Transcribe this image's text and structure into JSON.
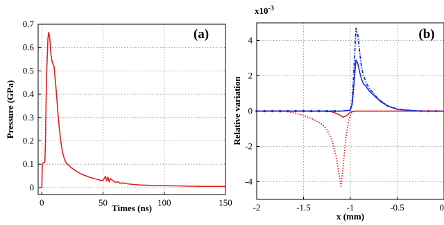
{
  "colors": {
    "red": "#e02020",
    "blue": "#1a2fd6"
  },
  "chart_data": [
    {
      "type": "line",
      "panel_label": "(a)",
      "xlabel": "Times (ns)",
      "ylabel": "Pressure (GPa)",
      "xlim": [
        -3,
        150
      ],
      "ylim": [
        -0.03,
        0.7
      ],
      "x_ticks": [
        0,
        50,
        100,
        150
      ],
      "x_tick_labels": [
        "0",
        "50",
        "100",
        "150"
      ],
      "y_ticks": [
        0,
        0.1,
        0.2,
        0.3,
        0.4,
        0.5,
        0.6,
        0.7
      ],
      "y_tick_labels": [
        "0",
        "0.1",
        "0.2",
        "0.3",
        "0.4",
        "0.5",
        "0.6",
        "0.7"
      ],
      "grid": true,
      "series": [
        {
          "color": "#e02020",
          "style": "solid",
          "x": [
            -3,
            0,
            0.4,
            1,
            2.5,
            3,
            3.4,
            4,
            5,
            5.6,
            6.5,
            7.5,
            8,
            9,
            10,
            11,
            12,
            13,
            14,
            15,
            16,
            17,
            18,
            19,
            20,
            22,
            24,
            26,
            28,
            30,
            32,
            35,
            38,
            40,
            43,
            46,
            48,
            50,
            52,
            53,
            54,
            55,
            56,
            58,
            60,
            62,
            64,
            66,
            70,
            75,
            80,
            90,
            100,
            110,
            120,
            130,
            140,
            150
          ],
          "y": [
            0,
            0,
            0.1,
            0.105,
            0.11,
            0.2,
            0.35,
            0.5,
            0.64,
            0.665,
            0.64,
            0.57,
            0.55,
            0.53,
            0.52,
            0.46,
            0.4,
            0.33,
            0.27,
            0.22,
            0.18,
            0.15,
            0.13,
            0.115,
            0.105,
            0.095,
            0.085,
            0.078,
            0.07,
            0.065,
            0.058,
            0.052,
            0.046,
            0.042,
            0.038,
            0.034,
            0.03,
            0.03,
            0.048,
            0.028,
            0.045,
            0.025,
            0.038,
            0.03,
            0.022,
            0.025,
            0.018,
            0.02,
            0.016,
            0.013,
            0.011,
            0.009,
            0.008,
            0.007,
            0.006,
            0.005,
            0.005,
            0.005
          ]
        }
      ]
    },
    {
      "type": "line",
      "panel_label": "(b)",
      "xlabel": "x (mm)",
      "ylabel": "Relative variation",
      "exponent_label": "x10",
      "exponent_sup": "-3",
      "xlim": [
        -2,
        0
      ],
      "ylim": [
        -5,
        5
      ],
      "x_ticks": [
        -2,
        -1.5,
        -1,
        -0.5,
        0
      ],
      "x_tick_labels": [
        "-2",
        "-1.5",
        "-1",
        "-0.5",
        "0"
      ],
      "y_ticks": [
        -4,
        -2,
        0,
        2,
        4
      ],
      "y_tick_labels": [
        "-4",
        "-2",
        "0",
        "2",
        "4"
      ],
      "grid": true,
      "series": [
        {
          "color": "#e02020",
          "style": "dotted",
          "x": [
            -2,
            -1.7,
            -1.6,
            -1.5,
            -1.4,
            -1.3,
            -1.25,
            -1.2,
            -1.15,
            -1.12,
            -1.1,
            -1.08,
            -1.05,
            -1.02,
            -1.0,
            -0.98,
            -0.95,
            -0.9,
            -0.8,
            -0.6,
            -0.4,
            0
          ],
          "y": [
            0,
            0,
            -0.1,
            -0.25,
            -0.45,
            -0.75,
            -1.05,
            -1.6,
            -2.6,
            -3.6,
            -4.25,
            -3.3,
            -1.6,
            -0.6,
            -0.2,
            -0.05,
            0,
            0,
            0,
            0,
            0,
            0
          ]
        },
        {
          "color": "#e02020",
          "style": "solid",
          "x": [
            -2,
            -1.3,
            -1.2,
            -1.12,
            -1.08,
            -1.04,
            -1.0,
            -0.95,
            -0.9,
            0
          ],
          "y": [
            0,
            0,
            -0.03,
            -0.2,
            -0.35,
            -0.25,
            -0.05,
            0,
            0,
            0
          ]
        },
        {
          "color": "#1a2fd6",
          "style": "dashdot",
          "x": [
            -2,
            -1.1,
            -1.0,
            -0.98,
            -0.96,
            -0.94,
            -0.92,
            -0.9,
            -0.88,
            -0.86,
            -0.84,
            -0.82,
            -0.8,
            -0.76,
            -0.72,
            -0.68,
            -0.6,
            -0.5,
            -0.4,
            -0.3,
            -0.2,
            0
          ],
          "y": [
            0,
            0,
            0.05,
            0.6,
            2.5,
            4.7,
            4.3,
            3.3,
            2.5,
            2.0,
            1.75,
            1.5,
            1.3,
            1.05,
            0.8,
            0.6,
            0.3,
            0.12,
            0.06,
            0.02,
            0,
            0
          ]
        },
        {
          "color": "#1a2fd6",
          "style": "solid",
          "x": [
            -2,
            -1.1,
            -1.0,
            -0.98,
            -0.96,
            -0.94,
            -0.92,
            -0.9,
            -0.88,
            -0.86,
            -0.84,
            -0.82,
            -0.8,
            -0.76,
            -0.72,
            -0.68,
            -0.6,
            -0.5,
            -0.4,
            -0.3,
            -0.2,
            0
          ],
          "y": [
            0,
            0,
            0.05,
            0.4,
            1.6,
            2.9,
            2.7,
            2.2,
            1.8,
            1.55,
            1.45,
            1.3,
            1.15,
            0.95,
            0.75,
            0.55,
            0.28,
            0.1,
            0.05,
            0.02,
            0,
            0
          ]
        }
      ]
    }
  ]
}
